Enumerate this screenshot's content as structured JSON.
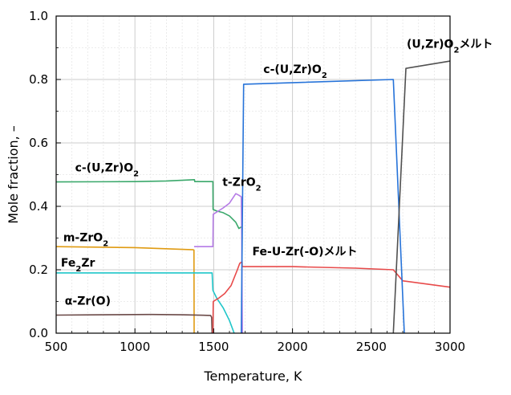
{
  "chart_data": {
    "type": "line",
    "xlabel": "Temperature, K",
    "ylabel": "Mole fraction, –",
    "xlim": [
      500,
      3000
    ],
    "ylim": [
      0.0,
      1.0
    ],
    "x_ticks": [
      500,
      1000,
      1500,
      2000,
      2500,
      3000
    ],
    "x_tick_labels": [
      "500",
      "1000",
      "1500",
      "2000",
      "2500",
      "3000"
    ],
    "y_ticks": [
      0.0,
      0.2,
      0.4,
      0.6,
      0.8,
      1.0
    ],
    "y_tick_labels": [
      "0.0",
      "0.2",
      "0.4",
      "0.6",
      "0.8",
      "1.0"
    ],
    "grid": true,
    "series": [
      {
        "color": "#3aa86b",
        "x": [
          500,
          1000,
          1200,
          1378,
          1380,
          1495,
          1496,
          1520,
          1560,
          1600,
          1640,
          1660,
          1675,
          1680
        ],
        "y": [
          0.477,
          0.478,
          0.48,
          0.484,
          0.478,
          0.478,
          0.39,
          0.385,
          0.38,
          0.37,
          0.35,
          0.33,
          0.335,
          0.335
        ]
      },
      {
        "color": "#e09b12",
        "x": [
          500,
          1000,
          1370,
          1375,
          1376
        ],
        "y": [
          0.273,
          0.27,
          0.263,
          0.262,
          0.0
        ]
      },
      {
        "color": "#1fc6c9",
        "x": [
          500,
          1480,
          1490,
          1495,
          1520,
          1560,
          1600,
          1630
        ],
        "y": [
          0.19,
          0.19,
          0.19,
          0.135,
          0.11,
          0.08,
          0.04,
          0.0
        ]
      },
      {
        "color": "#6b4a48",
        "x": [
          500,
          800,
          1100,
          1300,
          1480,
          1487,
          1490
        ],
        "y": [
          0.057,
          0.058,
          0.059,
          0.058,
          0.056,
          0.05,
          0.0
        ]
      },
      {
        "color": "#b57be6",
        "x": [
          1376,
          1490,
          1495,
          1497,
          1520,
          1560,
          1600,
          1640,
          1660,
          1675,
          1678,
          1680,
          1682
        ],
        "y": [
          0.273,
          0.273,
          0.273,
          0.375,
          0.382,
          0.395,
          0.41,
          0.44,
          0.435,
          0.43,
          0.3,
          0.1,
          0.0
        ]
      },
      {
        "color": "#e84a4a",
        "x": [
          1495,
          1497,
          1530,
          1570,
          1610,
          1650,
          1665,
          1680,
          1681,
          2000,
          2400,
          2640,
          2700,
          3000
        ],
        "y": [
          0.0,
          0.1,
          0.11,
          0.125,
          0.15,
          0.2,
          0.22,
          0.225,
          0.21,
          0.21,
          0.205,
          0.2,
          0.165,
          0.145
        ]
      },
      {
        "color": "#2673d9",
        "x": [
          1675,
          1690,
          2640,
          2710
        ],
        "y": [
          0.0,
          0.785,
          0.8,
          0.0
        ]
      },
      {
        "color": "#505050",
        "x": [
          2640,
          2720,
          3000
        ],
        "y": [
          0.0,
          0.835,
          0.858
        ]
      }
    ],
    "annotations": [
      {
        "parts": [
          {
            "t": "c-(U,Zr)O"
          },
          {
            "t": "2",
            "sub": true
          }
        ],
        "x": 620,
        "y": 0.51
      },
      {
        "parts": [
          {
            "t": "t-ZrO"
          },
          {
            "t": "2",
            "sub": true
          }
        ],
        "x": 1555,
        "y": 0.465
      },
      {
        "parts": [
          {
            "t": "m-ZrO"
          },
          {
            "t": "2",
            "sub": true
          }
        ],
        "x": 545,
        "y": 0.29
      },
      {
        "parts": [
          {
            "t": "Fe"
          },
          {
            "t": "2",
            "sub": true
          },
          {
            "t": "Zr"
          }
        ],
        "x": 530,
        "y": 0.21
      },
      {
        "parts": [
          {
            "t": "α-Zr(O)"
          }
        ],
        "x": 555,
        "y": 0.09
      },
      {
        "parts": [
          {
            "t": "c-(U,Zr)O"
          },
          {
            "t": "2",
            "sub": true
          }
        ],
        "x": 1815,
        "y": 0.82
      },
      {
        "parts": [
          {
            "t": "(U,Zr)O"
          },
          {
            "t": "2",
            "sub": true
          },
          {
            "t": "メルト"
          }
        ],
        "x": 2725,
        "y": 0.9
      },
      {
        "parts": [
          {
            "t": "Fe-U-Zr(-O)メルト"
          }
        ],
        "x": 1745,
        "y": 0.245
      }
    ]
  }
}
